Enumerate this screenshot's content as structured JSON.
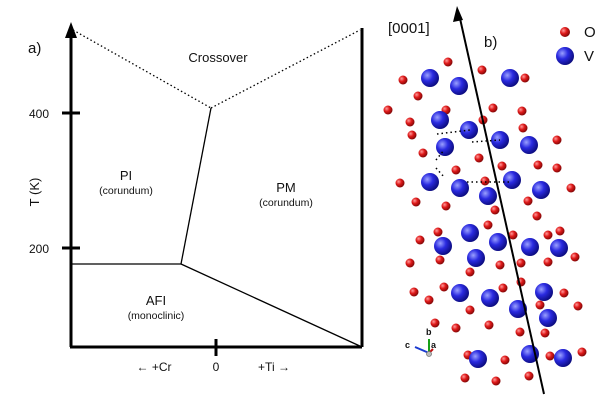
{
  "panel_a": {
    "label": "a)",
    "y_axis": {
      "label": "T (K)",
      "ticks": [
        "400",
        "200"
      ]
    },
    "x_axis": {
      "center_tick": "0",
      "left": "← +Cr",
      "right": "+Ti →"
    },
    "regions": {
      "crossover": {
        "name": "Crossover"
      },
      "pi": {
        "name": "PI",
        "sub": "(corundum)"
      },
      "pm": {
        "name": "PM",
        "sub": "(corundum)"
      },
      "afi": {
        "name": "AFI",
        "sub": "(monoclinic)"
      }
    }
  },
  "panel_b": {
    "label": "b)",
    "axis": "[0001]",
    "legend": [
      {
        "symbol": "O",
        "color": "#dd1a1a"
      },
      {
        "symbol": "V",
        "color": "#1f1fd6"
      }
    ],
    "triad": {
      "b": "b",
      "a": "a",
      "c": "c"
    }
  }
}
